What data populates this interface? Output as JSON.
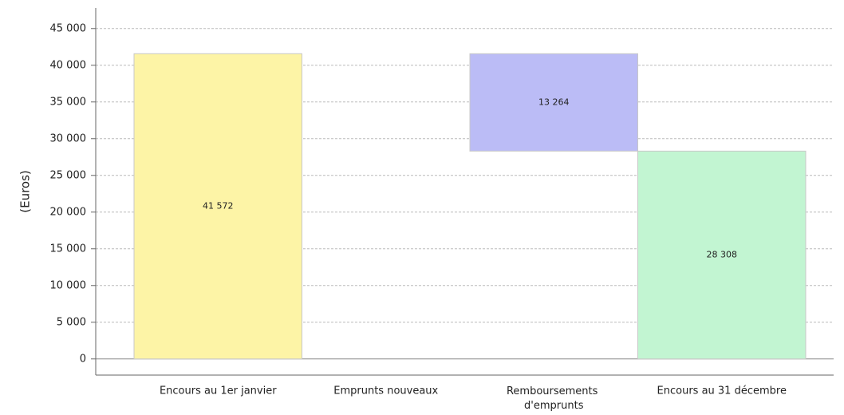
{
  "chart_data": {
    "type": "waterfall",
    "y_label": "(Euros)",
    "categories": [
      "Encours au 1er janvier",
      "Emprunts nouveaux",
      "Remboursements d'emprunts",
      "Encours au 31 décembre"
    ],
    "values": [
      41572,
      0,
      -13264,
      28308
    ],
    "value_labels": [
      "41 572",
      null,
      "13 264",
      "28 308"
    ],
    "colors": [
      "#fdf4a6",
      "#c2f5d2",
      "#bbbcf6",
      "#c2f5d2"
    ],
    "ylim": [
      -2200,
      47800
    ],
    "yticks": [
      0,
      {
        "value": 5000,
        "label": "5 000"
      },
      {
        "value": 10000,
        "label": "10 000"
      },
      {
        "value": 15000,
        "label": "15 000"
      },
      {
        "value": 20000,
        "label": "20 000"
      },
      {
        "value": 25000,
        "label": "25 000"
      },
      {
        "value": 30000,
        "label": "30 000"
      },
      {
        "value": 35000,
        "label": "35 000"
      },
      {
        "value": 40000,
        "label": "40 000"
      },
      {
        "value": 45000,
        "label": "45 000"
      }
    ],
    "grid": true
  }
}
